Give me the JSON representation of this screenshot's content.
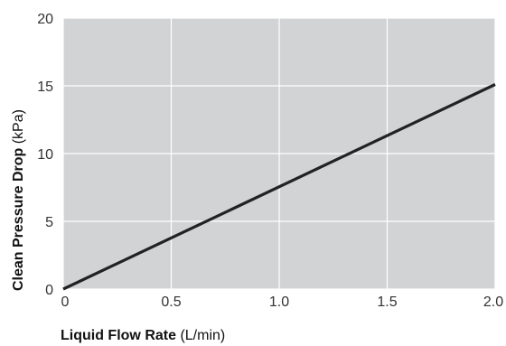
{
  "chart_data": {
    "type": "line",
    "xlabel_main": "Liquid Flow Rate",
    "xlabel_unit": "(L/min)",
    "ylabel_main": "Clean Pressure Drop",
    "ylabel_unit": "(kPa)",
    "xlim": [
      0,
      2.0
    ],
    "ylim": [
      0,
      20
    ],
    "x_ticks": [
      0,
      0.5,
      1.0,
      1.5,
      2.0
    ],
    "x_tick_labels": [
      "0",
      "0.5",
      "1.0",
      "1.5",
      "2.0"
    ],
    "y_ticks": [
      0,
      5,
      10,
      15,
      20
    ],
    "y_tick_labels": [
      "0",
      "5",
      "10",
      "15",
      "20"
    ],
    "grid": true,
    "series": [
      {
        "x": [
          0,
          2.0
        ],
        "y": [
          0,
          15.1
        ]
      }
    ],
    "colors": {
      "plot_bg": "#d2d3d5",
      "grid": "#ffffff",
      "line": "#222222"
    }
  }
}
